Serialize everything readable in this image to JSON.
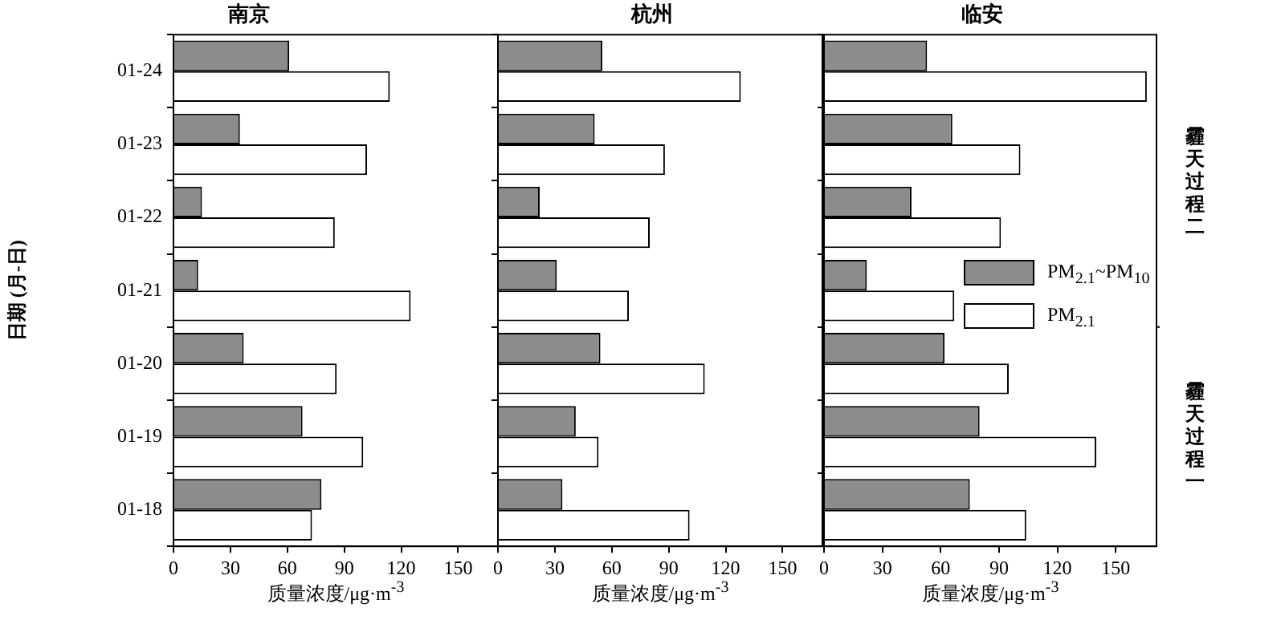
{
  "chart_data": [
    {
      "type": "bar",
      "orientation": "horizontal",
      "title": "南京",
      "xlabel": "质量浓度/μg·m$^{-3}$",
      "ylabel": "日期 (月-日)",
      "categories": [
        "01-24",
        "01-23",
        "01-22",
        "01-21",
        "01-20",
        "01-19",
        "01-18"
      ],
      "series": [
        {
          "color": "#8c8c8c",
          "values": [
            61,
            35,
            15,
            13,
            37,
            68,
            78
          ]
        },
        {
          "color": "#ffffff",
          "values": [
            114,
            102,
            85,
            125,
            86,
            100,
            73
          ]
        }
      ],
      "xlim": [
        0,
        171
      ],
      "xticks": [
        0,
        30,
        60,
        90,
        120,
        150
      ],
      "grid": false
    },
    {
      "type": "bar",
      "orientation": "horizontal",
      "title": "杭州",
      "xlabel": "质量浓度/μg·m$^{-3}$",
      "categories": [
        null,
        null,
        null,
        null,
        null,
        null,
        null
      ],
      "series": [
        {
          "color": "#8c8c8c",
          "values": [
            55,
            51,
            22,
            31,
            54,
            41,
            34
          ]
        },
        {
          "color": "#ffffff",
          "values": [
            128,
            88,
            80,
            69,
            109,
            53,
            101
          ]
        }
      ],
      "xlim": [
        0,
        171
      ],
      "xticks": [
        0,
        30,
        60,
        90,
        120,
        150
      ],
      "grid": false
    },
    {
      "type": "bar",
      "orientation": "horizontal",
      "title": "临安",
      "xlabel": "质量浓度/μg·m$^{-3}$",
      "categories": [
        null,
        null,
        null,
        null,
        null,
        null,
        null
      ],
      "series": [
        {
          "name": "PM$_{2.1}$~PM$_{10}$",
          "color": "#8c8c8c",
          "values": [
            53,
            66,
            45,
            22,
            62,
            80,
            75
          ]
        },
        {
          "name": "PM$_{2.1}$",
          "color": "#ffffff",
          "values": [
            166,
            101,
            91,
            67,
            95,
            140,
            104
          ]
        }
      ],
      "xlim": [
        0,
        171
      ],
      "xticks": [
        0,
        30,
        60,
        90,
        120,
        150
      ],
      "grid": false,
      "legend": "right",
      "annotations": [
        "霾天过程二",
        "霾天过程一"
      ]
    }
  ]
}
